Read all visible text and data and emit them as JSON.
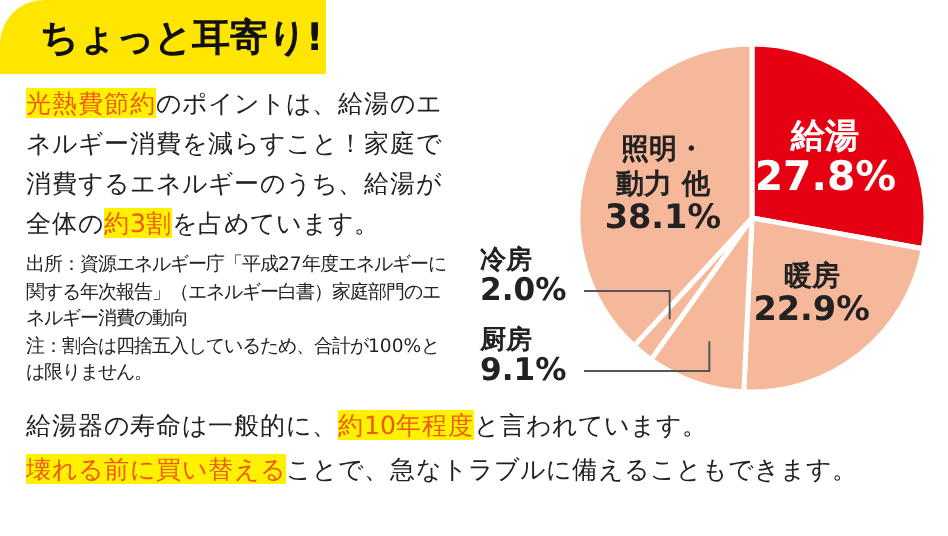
{
  "chart_data": {
    "type": "pie",
    "title": "ちょっと耳寄り!",
    "categories": [
      "給湯",
      "暖房",
      "厨房",
      "冷房",
      "照明・動力 他"
    ],
    "values": [
      27.8,
      22.9,
      9.1,
      2.0,
      38.1
    ],
    "colors": [
      "#e50012",
      "#f6b89b",
      "#f6b89b",
      "#f6b89b",
      "#f6b89b"
    ],
    "value_labels": [
      "27.8%",
      "22.9%",
      "9.1%",
      "2.0%",
      "38.1%"
    ],
    "annotations": [
      "光熱費節約",
      "のポイントは、給湯のエネルギー消費を減らすこと！家庭で消費するエネルギーのうち、給湯が全体の",
      "約3割",
      "を占めています。",
      "出所：資源エネルギー庁「平成27年度エネルギーに関する年次報告」（エネルギー白書）家庭部門のエネルギー消費の動向",
      "注：割合は四捨五入しているため、合計が100%とは限りません。",
      "給湯器の寿命は一般的に、",
      "約10年程度",
      "と言われています。",
      "壊れる前に買い替える",
      "ことで、急なトラブルに備えることもできます。"
    ]
  }
}
